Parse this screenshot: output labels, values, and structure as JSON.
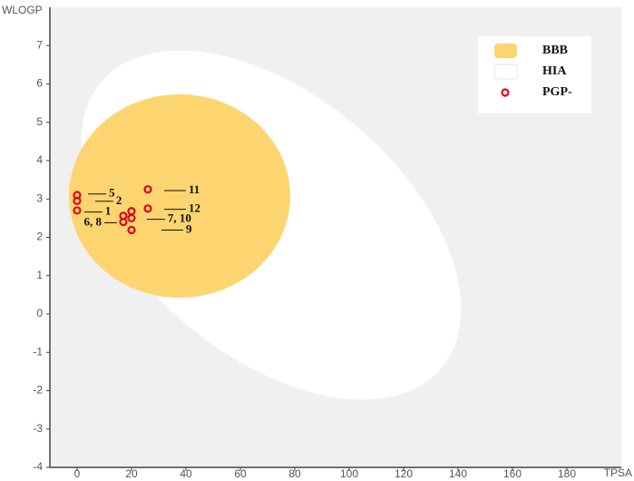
{
  "chart_data": {
    "type": "scatter",
    "x_label": "TPSA",
    "y_label": "WLOGP",
    "xlim": [
      -10,
      200
    ],
    "ylim": [
      -4,
      8
    ],
    "xticks": [
      0,
      20,
      40,
      60,
      80,
      100,
      120,
      140,
      160,
      180
    ],
    "yticks": [
      -4,
      -3,
      -2,
      -1,
      0,
      1,
      2,
      3,
      4,
      5,
      6,
      7
    ],
    "regions": [
      {
        "name": "BBB",
        "color": "#fcd570"
      },
      {
        "name": "HIA",
        "color": "#ffffff"
      }
    ],
    "series": [
      {
        "name": "PGP-",
        "color": "#e3001b",
        "x": [
          0,
          0,
          0,
          17,
          17,
          20,
          20,
          20,
          26,
          26
        ],
        "y": [
          2.7,
          2.95,
          3.1,
          2.4,
          2.56,
          2.5,
          2.68,
          2.19,
          3.25,
          2.75
        ]
      }
    ],
    "annotations": [
      {
        "text": "5",
        "x": 11.7,
        "y": 3.13
      },
      {
        "text": "2",
        "x": 14.3,
        "y": 2.94
      },
      {
        "text": "1",
        "x": 10.3,
        "y": 2.66
      },
      {
        "text": "6, 8",
        "x": 2.5,
        "y": 2.38
      },
      {
        "text": "7, 10",
        "x": 33.3,
        "y": 2.47
      },
      {
        "text": "9",
        "x": 40,
        "y": 2.19
      },
      {
        "text": "11",
        "x": 41,
        "y": 3.22
      },
      {
        "text": "12",
        "x": 41,
        "y": 2.73
      }
    ]
  }
}
